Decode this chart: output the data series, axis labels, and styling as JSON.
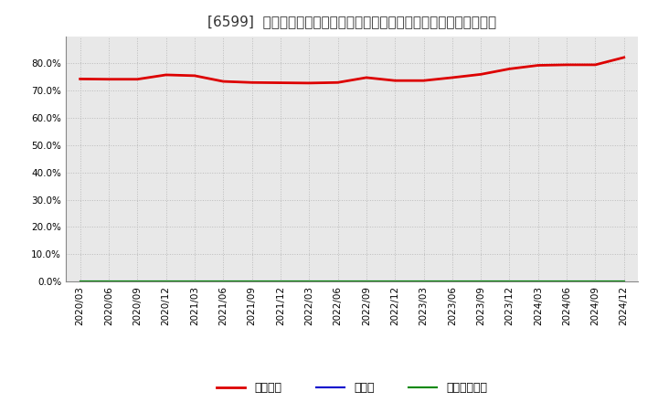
{
  "title": "[6599]  自己資本、のれん、繰延税金資産の総資産に対する比率の推移",
  "x_labels": [
    "2020/03",
    "2020/06",
    "2020/09",
    "2020/12",
    "2021/03",
    "2021/06",
    "2021/09",
    "2021/12",
    "2022/03",
    "2022/06",
    "2022/09",
    "2022/12",
    "2023/03",
    "2023/06",
    "2023/09",
    "2023/12",
    "2024/03",
    "2024/06",
    "2024/09",
    "2024/12"
  ],
  "equity_ratio": [
    0.743,
    0.742,
    0.742,
    0.758,
    0.755,
    0.734,
    0.73,
    0.729,
    0.728,
    0.73,
    0.748,
    0.737,
    0.737,
    0.748,
    0.76,
    0.78,
    0.793,
    0.795,
    0.795,
    0.822
  ],
  "goodwill_ratio": [
    0.0,
    0.0,
    0.0,
    0.0,
    0.0,
    0.0,
    0.0,
    0.0,
    0.0,
    0.0,
    0.0,
    0.0,
    0.0,
    0.0,
    0.0,
    0.0,
    0.0,
    0.0,
    0.0,
    0.0
  ],
  "deferred_tax_ratio": [
    0.0,
    0.0,
    0.0,
    0.0,
    0.0,
    0.0,
    0.0,
    0.0,
    0.0,
    0.0,
    0.0,
    0.0,
    0.0,
    0.0,
    0.0,
    0.0,
    0.0,
    0.0,
    0.0,
    0.0
  ],
  "equity_color": "#dd0000",
  "goodwill_color": "#0000cc",
  "deferred_tax_color": "#008800",
  "ylim": [
    0.0,
    0.9
  ],
  "yticks": [
    0.0,
    0.1,
    0.2,
    0.3,
    0.4,
    0.5,
    0.6,
    0.7,
    0.8
  ],
  "plot_bg_color": "#e8e8e8",
  "background_color": "#ffffff",
  "grid_color": "#bbbbbb",
  "legend_labels": [
    "自己資本",
    "のれん",
    "繰延税金資産"
  ],
  "title_fontsize": 11,
  "tick_fontsize": 7.5,
  "legend_fontsize": 9
}
